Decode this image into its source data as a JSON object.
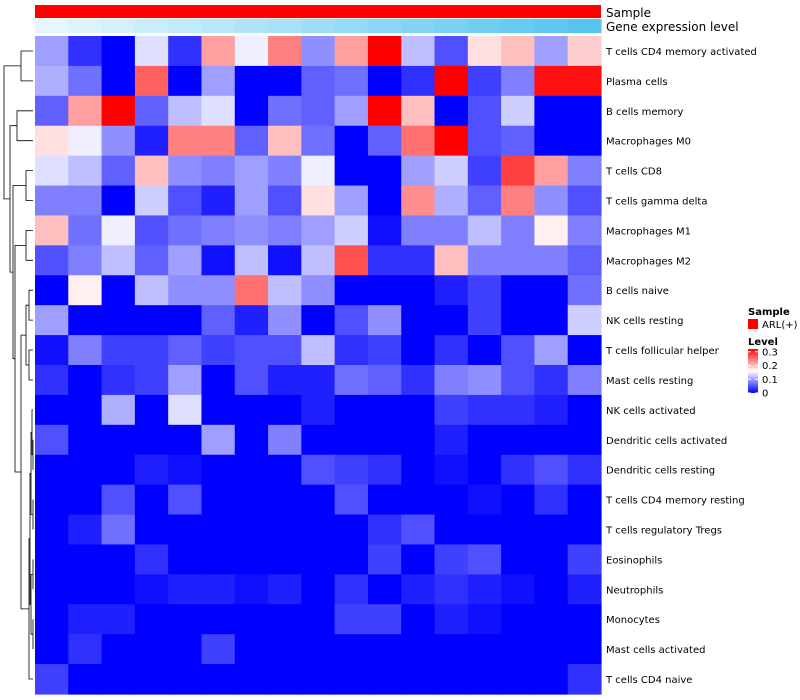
{
  "chart_data": {
    "type": "heatmap",
    "title": "",
    "annotation_tracks": [
      {
        "name": "Sample",
        "label": "Sample",
        "color": "#ff0000"
      },
      {
        "name": "Gene expression level",
        "label": "Gene expression level",
        "start_color": "#ffffff",
        "end_color": "#55c5f0"
      }
    ],
    "legend_sample": {
      "title": "Sample",
      "entries": [
        {
          "label": "ARL(+)",
          "color": "#ff0000"
        }
      ]
    },
    "legend_level": {
      "title": "Level",
      "ticks": [
        "0.3",
        "0.2",
        "0.1",
        "0"
      ],
      "tick_values": [
        0.3,
        0.2,
        0.1,
        0
      ],
      "range": [
        0,
        0.32
      ]
    },
    "color_scale": {
      "low": "#0000ff",
      "mid": "#ffffff",
      "high": "#ff0000",
      "midpoint": 0.16
    },
    "rows": [
      "T cells CD4 memory activated",
      "Plasma cells",
      "B cells memory",
      "Macrophages M0",
      "T cells CD8",
      "T cells gamma delta",
      "Macrophages M1",
      "Macrophages M2",
      "B cells naive",
      "NK cells resting",
      "T cells follicular helper",
      "Mast cells resting",
      "NK cells activated",
      "Dendritic cells activated",
      "Dendritic cells resting",
      "T cells CD4 memory resting",
      "T cells regulatory  Tregs",
      "Eosinophils",
      "Neutrophils",
      "Monocytes",
      "Mast cells activated",
      "T cells CD4 naive"
    ],
    "values": [
      [
        0.1,
        0.03,
        0.0,
        0.14,
        0.03,
        0.22,
        0.15,
        0.24,
        0.09,
        0.22,
        0.32,
        0.12,
        0.05,
        0.18,
        0.2,
        0.1,
        0.19
      ],
      [
        0.11,
        0.07,
        0.0,
        0.26,
        0.0,
        0.1,
        0.0,
        0.0,
        0.06,
        0.07,
        0.0,
        0.03,
        0.32,
        0.04,
        0.08,
        0.31,
        0.31
      ],
      [
        0.06,
        0.22,
        0.32,
        0.06,
        0.12,
        0.14,
        0.0,
        0.07,
        0.06,
        0.1,
        0.32,
        0.2,
        0.0,
        0.05,
        0.13,
        0.0,
        0.0
      ],
      [
        0.18,
        0.15,
        0.09,
        0.02,
        0.24,
        0.24,
        0.06,
        0.2,
        0.07,
        0.0,
        0.06,
        0.25,
        0.32,
        0.05,
        0.06,
        0.0,
        0.0
      ],
      [
        0.14,
        0.12,
        0.06,
        0.2,
        0.09,
        0.08,
        0.1,
        0.08,
        0.15,
        0.0,
        0.0,
        0.1,
        0.13,
        0.04,
        0.28,
        0.22,
        0.08
      ],
      [
        0.08,
        0.08,
        0.0,
        0.13,
        0.05,
        0.02,
        0.1,
        0.05,
        0.18,
        0.1,
        0.0,
        0.23,
        0.11,
        0.06,
        0.24,
        0.09,
        0.05
      ],
      [
        0.2,
        0.07,
        0.15,
        0.05,
        0.07,
        0.08,
        0.09,
        0.08,
        0.1,
        0.13,
        0.01,
        0.08,
        0.08,
        0.12,
        0.08,
        0.17,
        0.08
      ],
      [
        0.05,
        0.08,
        0.12,
        0.06,
        0.1,
        0.01,
        0.12,
        0.01,
        0.12,
        0.27,
        0.03,
        0.03,
        0.2,
        0.08,
        0.08,
        0.08,
        0.06
      ],
      [
        0.0,
        0.17,
        0.0,
        0.12,
        0.09,
        0.09,
        0.25,
        0.12,
        0.09,
        0.0,
        0.0,
        0.0,
        0.02,
        0.04,
        0.0,
        0.0,
        0.07
      ],
      [
        0.1,
        0.0,
        0.0,
        0.0,
        0.0,
        0.06,
        0.02,
        0.09,
        0.0,
        0.05,
        0.09,
        0.0,
        0.0,
        0.04,
        0.0,
        0.0,
        0.13
      ],
      [
        0.01,
        0.08,
        0.04,
        0.04,
        0.06,
        0.04,
        0.05,
        0.05,
        0.12,
        0.03,
        0.04,
        0.0,
        0.03,
        0.0,
        0.05,
        0.1,
        0.0
      ],
      [
        0.03,
        0.0,
        0.03,
        0.04,
        0.1,
        0.0,
        0.05,
        0.02,
        0.02,
        0.07,
        0.06,
        0.03,
        0.08,
        0.09,
        0.05,
        0.03,
        0.08
      ],
      [
        0.0,
        0.0,
        0.11,
        0.0,
        0.14,
        0.0,
        0.0,
        0.0,
        0.02,
        0.0,
        0.0,
        0.0,
        0.04,
        0.03,
        0.03,
        0.02,
        0.0
      ],
      [
        0.05,
        0.0,
        0.0,
        0.0,
        0.0,
        0.1,
        0.0,
        0.08,
        0.0,
        0.0,
        0.0,
        0.0,
        0.02,
        0.0,
        0.0,
        0.0,
        0.0
      ],
      [
        0.0,
        0.0,
        0.0,
        0.02,
        0.01,
        0.0,
        0.0,
        0.0,
        0.05,
        0.04,
        0.03,
        0.0,
        0.01,
        0.0,
        0.03,
        0.05,
        0.03
      ],
      [
        0.0,
        0.0,
        0.05,
        0.0,
        0.05,
        0.0,
        0.0,
        0.0,
        0.0,
        0.05,
        0.0,
        0.0,
        0.0,
        0.01,
        0.0,
        0.03,
        0.0
      ],
      [
        0.0,
        0.02,
        0.07,
        0.0,
        0.0,
        0.0,
        0.0,
        0.0,
        0.0,
        0.0,
        0.03,
        0.05,
        0.0,
        0.0,
        0.0,
        0.0,
        0.0
      ],
      [
        0.0,
        0.0,
        0.0,
        0.03,
        0.0,
        0.0,
        0.0,
        0.0,
        0.0,
        0.0,
        0.04,
        0.0,
        0.04,
        0.05,
        0.0,
        0.0,
        0.04
      ],
      [
        0.0,
        0.0,
        0.0,
        0.01,
        0.02,
        0.02,
        0.01,
        0.02,
        0.0,
        0.03,
        0.0,
        0.02,
        0.03,
        0.02,
        0.01,
        0.0,
        0.02
      ],
      [
        0.0,
        0.02,
        0.02,
        0.0,
        0.0,
        0.0,
        0.0,
        0.0,
        0.0,
        0.04,
        0.04,
        0.0,
        0.02,
        0.01,
        0.0,
        0.0,
        0.0
      ],
      [
        0.0,
        0.03,
        0.0,
        0.0,
        0.0,
        0.04,
        0.0,
        0.0,
        0.0,
        0.0,
        0.0,
        0.0,
        0.0,
        0.0,
        0.0,
        0.0,
        0.0
      ],
      [
        0.04,
        0.0,
        0.0,
        0.0,
        0.0,
        0.0,
        0.0,
        0.0,
        0.0,
        0.0,
        0.0,
        0.0,
        0.0,
        0.0,
        0.0,
        0.0,
        0.03
      ]
    ]
  }
}
